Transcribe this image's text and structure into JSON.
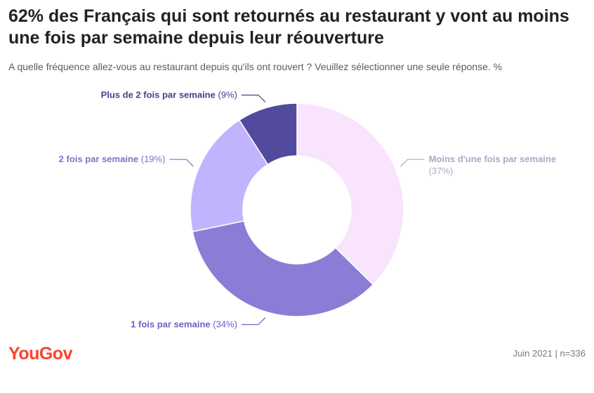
{
  "title": "62% des Français qui sont retournés au restaurant y vont au moins une fois par semaine depuis leur réouverture",
  "subtitle": "A quelle fréquence allez-vous au restaurant depuis qu'ils ont rouvert ? Veuillez sélectionner une seule réponse. %",
  "logo": "YouGov",
  "footer": "Juin 2021 | n=336",
  "chart_data": {
    "type": "pie",
    "donut": true,
    "slices": [
      {
        "label": "Moins d'une fois par semaine",
        "value": 37,
        "value_label": "(37%)",
        "color": "#f8e4fc",
        "label_color": "#b4a4c8"
      },
      {
        "label": "1 fois par semaine",
        "value": 34,
        "value_label": "(34%)",
        "color": "#8b7dd6",
        "label_color": "#6d60c4"
      },
      {
        "label": "2 fois par semaine",
        "value": 19,
        "value_label": "(19%)",
        "color": "#c2b3ff",
        "label_color": "#7f72cc"
      },
      {
        "label": "Plus de 2 fois par semaine",
        "value": 9,
        "value_label": "(9%)",
        "color": "#524a9c",
        "label_color": "#473f90"
      }
    ]
  }
}
